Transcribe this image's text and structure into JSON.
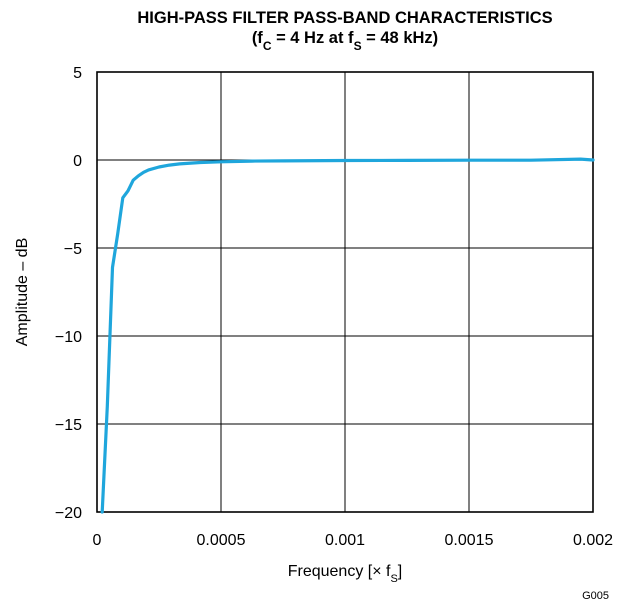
{
  "chart_data": {
    "type": "line",
    "title": "HIGH-PASS FILTER PASS-BAND CHARACTERISTICS",
    "subtitle": {
      "prefix": "(f",
      "sub1": "C",
      "mid": " = 4 Hz at f",
      "sub2": "S",
      "suffix": " = 48 kHz)"
    },
    "xlabel": {
      "prefix": "Frequency [× f",
      "sub": "S",
      "suffix": "]"
    },
    "ylabel": "Amplitude – dB",
    "xlim": [
      0,
      0.002
    ],
    "ylim": [
      -20,
      5
    ],
    "x_ticks": [
      "0",
      "0.0005",
      "0.001",
      "0.0015",
      "0.002"
    ],
    "x_tick_values": [
      0,
      0.0005,
      0.001,
      0.0015,
      0.002
    ],
    "y_ticks": [
      "5",
      "0",
      "−5",
      "−10",
      "−15",
      "−20"
    ],
    "y_tick_values": [
      5,
      0,
      -5,
      -10,
      -15,
      -20
    ],
    "grid": true,
    "figure_id": "G005",
    "series": [
      {
        "color": "#1fa6dc",
        "x": [
          2.08e-05,
          4.17e-05,
          6.25e-05,
          8.33e-05,
          0.000104,
          0.000125,
          0.000146,
          0.000167,
          0.000188,
          0.000208,
          0.00025,
          0.000292,
          0.000333,
          0.000417,
          0.0005,
          0.000625,
          0.00075,
          0.001,
          0.00125,
          0.0015,
          0.00175,
          0.00195,
          0.002
        ],
        "y": [
          -20.0,
          -14.0,
          -6.1,
          -4.2,
          -2.15,
          -1.75,
          -1.15,
          -0.9,
          -0.7,
          -0.56,
          -0.4,
          -0.29,
          -0.22,
          -0.14,
          -0.1,
          -0.06,
          -0.05,
          -0.03,
          -0.02,
          -0.01,
          -0.01,
          0.05,
          0.0
        ]
      }
    ]
  }
}
